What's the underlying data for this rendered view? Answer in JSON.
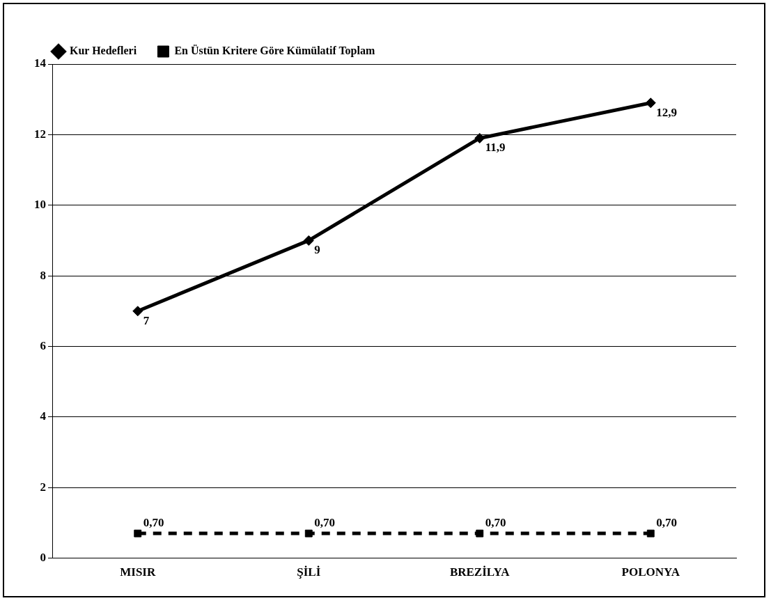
{
  "chart_data": {
    "type": "line",
    "categories": [
      "MISIR",
      "ŞİLİ",
      "BREZİLYA",
      "POLONYA"
    ],
    "series": [
      {
        "name": "Kur Hedefleri",
        "color": "#000000",
        "marker": "diamond",
        "line_style": "solid",
        "values": [
          7,
          9,
          11.9,
          12.9
        ],
        "value_labels": [
          "7",
          "9",
          "11,9",
          "12,9"
        ]
      },
      {
        "name": "En Üstün Kritere Göre Kümülatif Toplam",
        "color": "#000000",
        "marker": "square",
        "line_style": "dashed",
        "values": [
          0.7,
          0.7,
          0.7,
          0.7
        ],
        "value_labels": [
          "0,70",
          "0,70",
          "0,70",
          "0,70"
        ]
      }
    ],
    "ylim": [
      0,
      14
    ],
    "yticks": [
      0,
      2,
      4,
      6,
      8,
      10,
      12,
      14
    ],
    "grid": "y",
    "legend": "top left"
  }
}
